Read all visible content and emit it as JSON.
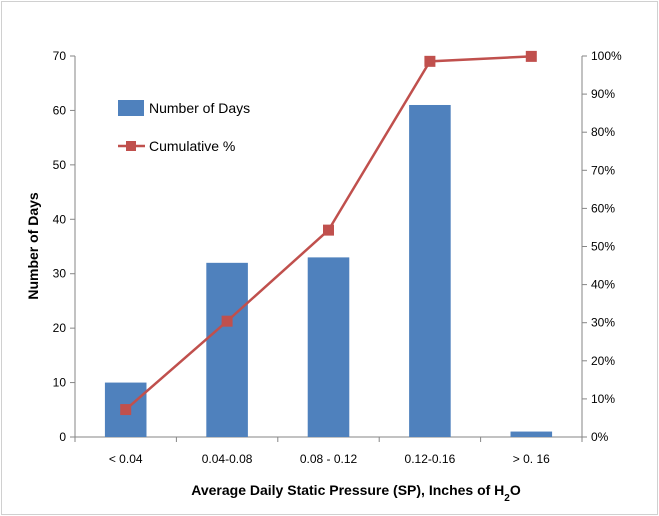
{
  "chart_data": {
    "type": "bar",
    "categories": [
      "< 0.04",
      "0.04-0.08",
      "0.08 - 0.12",
      "0.12-0.16",
      "> 0. 16"
    ],
    "series": [
      {
        "name": "Number of Days",
        "type": "bar",
        "axis": "left",
        "values": [
          10,
          32,
          33,
          61,
          1
        ],
        "color": "#4f81bd"
      },
      {
        "name": "Cumulative %",
        "type": "line",
        "axis": "right",
        "values": [
          7.2,
          30.4,
          54.3,
          98.6,
          99.9
        ],
        "color": "#c0504d",
        "marker": "square"
      }
    ],
    "xlabel_prefix": "Average Daily Static Pressure (SP), Inches of H",
    "xlabel_subscript": "2",
    "xlabel_suffix": "O",
    "ylabel": "Number of Days",
    "ylim": [
      0,
      70
    ],
    "yticks": [
      "0",
      "10",
      "20",
      "30",
      "40",
      "50",
      "60",
      "70"
    ],
    "y2lim": [
      0,
      100
    ],
    "y2ticks": [
      "0%",
      "10%",
      "20%",
      "30%",
      "40%",
      "50%",
      "60%",
      "70%",
      "80%",
      "90%",
      "100%"
    ],
    "grid": false,
    "legend_position": "top-left"
  }
}
